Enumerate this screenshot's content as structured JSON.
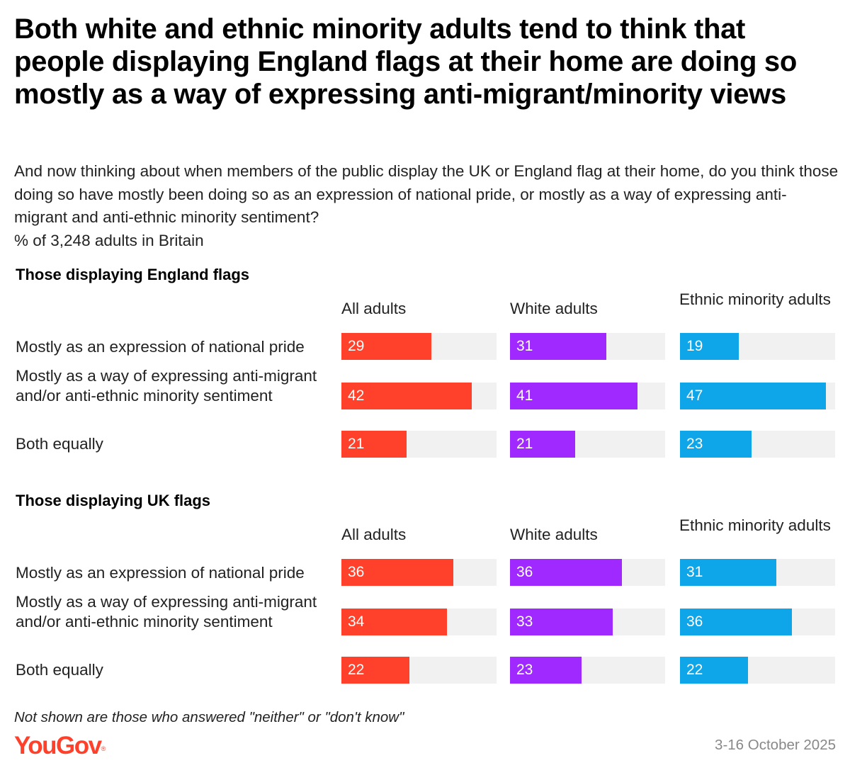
{
  "title": "Both white and ethnic minority adults tend to think that people displaying England flags at their home are doing so mostly as a way of expressing anti-migrant/minority views",
  "subtitle": "And now thinking about when members of the public display the UK or England flag at their home, do you think those doing so have mostly been doing so as an expression of national pride, or mostly as a way of expressing anti-migrant and anti-ethnic minority sentiment?",
  "base": "% of 3,248 adults in Britain",
  "footnote": "Not shown are those who answered \"neither\" or \"don't know\"",
  "brand": "YouGov",
  "brand_mark": "®",
  "date": "3-16 October 2025",
  "colors": {
    "all": "#ff412c",
    "white": "#9f29ff",
    "minority": "#0ea5e9",
    "track": "#f1f1f1",
    "brand": "#ff412c"
  },
  "chart_data": [
    {
      "type": "bar",
      "title": "Those displaying England flags",
      "categories": [
        "Mostly as an expression of national pride",
        "Mostly as a way of expressing anti-migrant and/or anti-ethnic minority sentiment",
        "Both equally"
      ],
      "xlim": [
        0,
        50
      ],
      "series": [
        {
          "name": "All adults",
          "values": [
            29,
            42,
            21
          ]
        },
        {
          "name": "White adults",
          "values": [
            31,
            41,
            21
          ]
        },
        {
          "name": "Ethnic minority adults",
          "values": [
            19,
            47,
            23
          ]
        }
      ]
    },
    {
      "type": "bar",
      "title": "Those displaying UK flags",
      "categories": [
        "Mostly as an expression of national pride",
        "Mostly as a way of expressing anti-migrant and/or anti-ethnic minority sentiment",
        "Both equally"
      ],
      "xlim": [
        0,
        50
      ],
      "series": [
        {
          "name": "All adults",
          "values": [
            36,
            34,
            22
          ]
        },
        {
          "name": "White adults",
          "values": [
            36,
            33,
            23
          ]
        },
        {
          "name": "Ethnic minority adults",
          "values": [
            31,
            36,
            22
          ]
        }
      ]
    }
  ]
}
